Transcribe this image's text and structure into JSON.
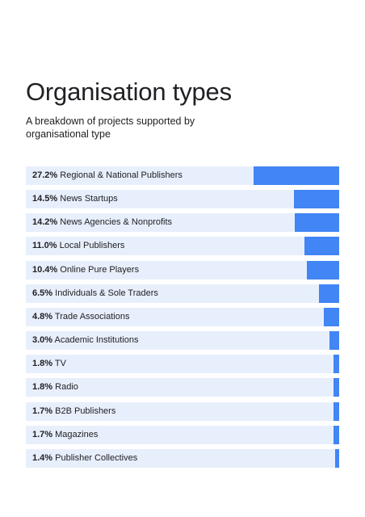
{
  "chart_data": {
    "type": "bar",
    "orientation": "horizontal",
    "title": "Organisation types",
    "subtitle": "A breakdown of projects supported by organisational type",
    "xlim": [
      0,
      100
    ],
    "categories": [
      "Regional & National Publishers",
      "News Startups",
      "News Agencies & Nonprofits",
      "Local Publishers",
      "Online Pure Players",
      "Individuals & Sole Traders",
      "Trade Associations",
      "Academic Institutions",
      "TV",
      "Radio",
      "B2B Publishers",
      "Magazines",
      "Publisher Collectives"
    ],
    "values": [
      27.2,
      14.5,
      14.2,
      11.0,
      10.4,
      6.5,
      4.8,
      3.0,
      1.8,
      1.8,
      1.7,
      1.7,
      1.4
    ],
    "value_labels": [
      "27.2%",
      "14.5%",
      "14.2%",
      "11.0%",
      "10.4%",
      "6.5%",
      "4.8%",
      "3.0%",
      "1.8%",
      "1.8%",
      "1.7%",
      "1.7%",
      "1.4%"
    ]
  },
  "colors": {
    "bar": "#4285f4",
    "track": "#e8effc",
    "text": "#202124"
  }
}
